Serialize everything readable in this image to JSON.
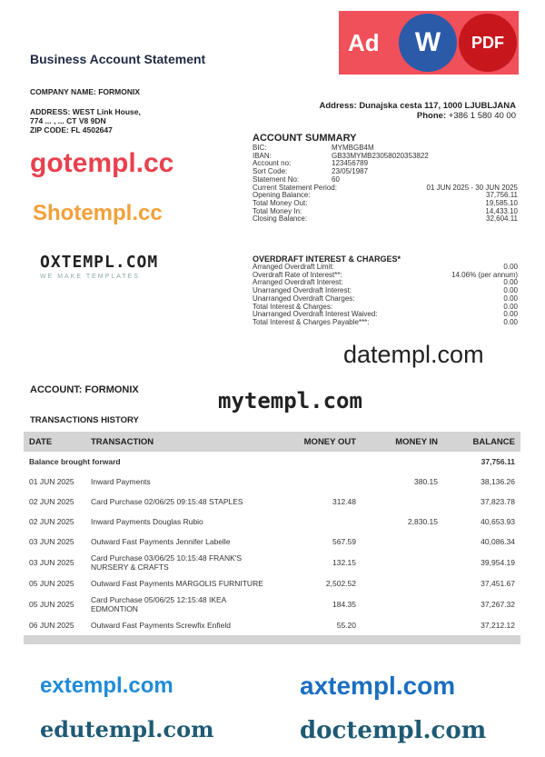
{
  "header": {
    "title": "Business Account Statement",
    "company": "COMPANY NAME: FORMONIX",
    "address_lines": [
      "ADDRESS: WEST Link House,",
      "774 ... , ... CT V8 9DN",
      "ZIP CODE: FL 4502647"
    ],
    "bank_address": "Address: Dunajska cesta 117, 1000 LJUBLJANA",
    "phone_label": "Phone:",
    "phone": "+386 1 580 40 00"
  },
  "badge": {
    "text": "Ad",
    "word": "W",
    "pdf": "PDF"
  },
  "summary": {
    "title": "ACCOUNT SUMMARY",
    "rows": [
      {
        "k": "BIC:",
        "v": "MYMBGB4M"
      },
      {
        "k": "IBAN:",
        "v": "GB33MYMB23058020353822"
      },
      {
        "k": "Account no:",
        "v": "123456789"
      },
      {
        "k": "Sort Code:",
        "v": "23/05/1987"
      },
      {
        "k": "Statement No:",
        "v": "60"
      },
      {
        "k": "Current Statement Period:",
        "r": "01 JUN 2025 - 30 JUN 2025"
      },
      {
        "k": "Opening Balance:",
        "r": "37,756.11"
      },
      {
        "k": "Total Money Out:",
        "r": "19,585.10"
      },
      {
        "k": "Total Money In:",
        "r": "14,433.10"
      },
      {
        "k": "Closing Balance:",
        "r": "32,604.11"
      }
    ]
  },
  "overdraft": {
    "title": "OVERDRAFT INTEREST & CHARGES*",
    "rows": [
      {
        "k": "Arranged Overdraft Limit:",
        "r": "0.00"
      },
      {
        "k": "Overdraft Rate of Interest**:",
        "r": "14.06% (per annum)"
      },
      {
        "k": "Arranged Overdraft Interest:",
        "r": "0.00"
      },
      {
        "k": "Unarranged Overdraft Interest:",
        "r": "0.00"
      },
      {
        "k": "Unarranged Overdraft Charges:",
        "r": "0.00"
      },
      {
        "k": "Total Interest & Charges:",
        "r": "0.00"
      },
      {
        "k": "Unarranged Overdraft Interest Waived:",
        "r": "0.00"
      },
      {
        "k": "Total Interest & Charges Payable***:",
        "r": "0.00"
      }
    ]
  },
  "oxtempl": {
    "name": "OXTEMPL.COM",
    "tagline": "WE MAKE TEMPLATES"
  },
  "account": "ACCOUNT: FORMONIX",
  "history_title": "TRANSACTIONS HISTORY",
  "table": {
    "headers": [
      "DATE",
      "TRANSACTION",
      "MONEY OUT",
      "MONEY IN",
      "BALANCE"
    ],
    "brought_forward": {
      "label": "Balance brought forward",
      "balance": "37,756.11"
    },
    "rows": [
      {
        "date": "01 JUN 2025",
        "desc": "Inward Payments",
        "out": "",
        "in": "380.15",
        "bal": "38,136.26"
      },
      {
        "date": "02 JUN 2025",
        "desc": "Card Purchase 02/06/25 09:15:48 STAPLES",
        "out": "312.48",
        "in": "",
        "bal": "37,823.78"
      },
      {
        "date": "02 JUN 2025",
        "desc": "Inward Payments Douglas Rubio",
        "out": "",
        "in": "2,830.15",
        "bal": "40,653.93"
      },
      {
        "date": "03 JUN 2025",
        "desc": "Outward Fast Payments Jennifer Labelle",
        "out": "567.59",
        "in": "",
        "bal": "40,086.34"
      },
      {
        "date": "03 JUN 2025",
        "desc": "Card Purchase 03/06/25 10:15:48 FRANK'S NURSERY & CRAFTS",
        "out": "132.15",
        "in": "",
        "bal": "39,954.19"
      },
      {
        "date": "05 JUN 2025",
        "desc": "Outward Fast Payments MARGOLIS FURNITURE",
        "out": "2,502.52",
        "in": "",
        "bal": "37,451.67"
      },
      {
        "date": "05 JUN 2025",
        "desc": "Card Purchase 05/06/25 12:15:48 IKEA EDMONTION",
        "out": "184.35",
        "in": "",
        "bal": "37,267.32"
      },
      {
        "date": "06 JUN 2025",
        "desc": "Outward Fast Payments Screwfix Enfield",
        "out": "55.20",
        "in": "",
        "bal": "37,212.12"
      }
    ]
  },
  "watermarks": {
    "gotempl": "gotempl.cc",
    "shotempl": "Shotempl.cc",
    "datempl": "datempl.com",
    "mytempl": "mytempl.com",
    "doctempl": "doctempl.com",
    "edutempl": "edutempl.com",
    "axtempl": "axtempl.com",
    "extempl": "extempl.com"
  }
}
